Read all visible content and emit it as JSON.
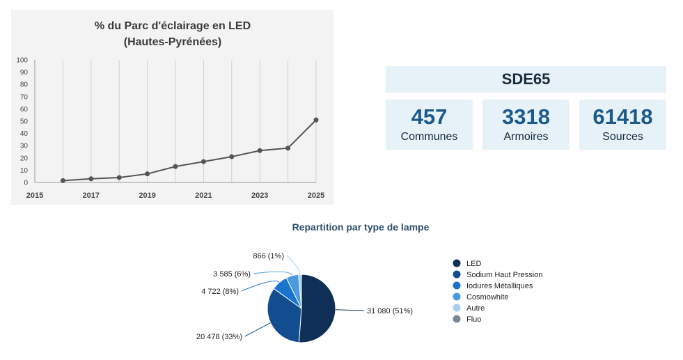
{
  "line_panel": {
    "title_line1": "% du Parc d'éclairage  en LED",
    "title_line2": "(Hautes-Pyrénées)"
  },
  "stats": {
    "header": "SDE65",
    "boxes": [
      {
        "value": "457",
        "label": "Communes"
      },
      {
        "value": "3318",
        "label": "Armoires"
      },
      {
        "value": "61418",
        "label": "Sources"
      }
    ]
  },
  "pie_panel": {
    "title": "Repartition par type de lampe"
  },
  "chart_data": [
    {
      "type": "line",
      "title": "% du Parc d'éclairage  en LED (Hautes-Pyrénées)",
      "x": [
        2016,
        2017,
        2018,
        2019,
        2020,
        2021,
        2022,
        2023,
        2024,
        2025
      ],
      "y": [
        1.5,
        3,
        4,
        7,
        13,
        17,
        21,
        26,
        28,
        51
      ],
      "xlim": [
        2015,
        2025
      ],
      "ylim": [
        0,
        100
      ],
      "x_ticks": [
        "2015",
        "2017",
        "2019",
        "2021",
        "2023",
        "2025"
      ],
      "y_ticks": [
        "0",
        "10",
        "20",
        "30",
        "40",
        "50",
        "60",
        "70",
        "80",
        "90",
        "100"
      ],
      "grid": "vertical",
      "line_color": "#555555"
    },
    {
      "type": "pie",
      "title": "Repartition par type de lampe",
      "slices": [
        {
          "name": "LED",
          "value": 31080,
          "label": "31 080 (51%)",
          "color": "#0f2f57"
        },
        {
          "name": "Sodium Haut Pression",
          "value": 20478,
          "label": "20 478 (33%)",
          "color": "#124d8f"
        },
        {
          "name": "Iodures Métalliques",
          "value": 4722,
          "label": "4 722 (8%)",
          "color": "#1a73cc"
        },
        {
          "name": "Cosmowhite",
          "value": 3585,
          "label": "3 585 (6%)",
          "color": "#4a9ae0"
        },
        {
          "name": "Autre",
          "value": 866,
          "label": "866 (1%)",
          "color": "#a9cdf0"
        },
        {
          "name": "Fluo",
          "value": 0,
          "label": "",
          "color": "#7a8793"
        }
      ],
      "legend": "right"
    }
  ]
}
